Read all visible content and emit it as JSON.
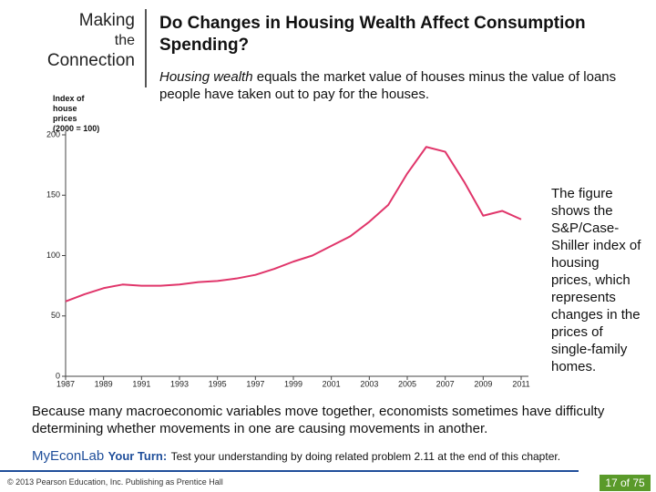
{
  "header": {
    "label_lines": [
      "Making",
      "the",
      "Connection"
    ],
    "title": "Do Changes in Housing Wealth Affect Consumption Spending?",
    "subtitle_emphasis": "Housing wealth",
    "subtitle_rest": " equals the market value of houses minus the value of loans people have taken out to pay for the houses."
  },
  "chart_data": {
    "type": "line",
    "y_label": "Index of house prices (2000 = 100)",
    "x": [
      1987,
      1988,
      1989,
      1990,
      1991,
      1992,
      1993,
      1994,
      1995,
      1996,
      1997,
      1998,
      1999,
      2000,
      2001,
      2002,
      2003,
      2004,
      2005,
      2006,
      2007,
      2008,
      2009,
      2010,
      2011
    ],
    "series": [
      {
        "name": "S&P/Case-Shiller index",
        "color": "#e0356a",
        "values": [
          62,
          68,
          73,
          76,
          75,
          75,
          76,
          78,
          79,
          81,
          84,
          89,
          95,
          100,
          108,
          116,
          128,
          142,
          168,
          190,
          186,
          161,
          133,
          137,
          130
        ]
      }
    ],
    "xlim": [
      1987,
      2011
    ],
    "xticks": [
      1987,
      1989,
      1991,
      1993,
      1995,
      1997,
      1999,
      2001,
      2003,
      2005,
      2007,
      2009,
      2011
    ],
    "ylim": [
      0,
      200
    ],
    "yticks": [
      0,
      50,
      100,
      150,
      200
    ],
    "grid": false
  },
  "side_note": "The figure shows the S&P/Case-Shiller index of housing prices, which represents changes in the prices of single-family homes.",
  "body": "Because many macroeconomic variables move together, economists sometimes have difficulty determining whether movements in one are causing movements in another.",
  "your_turn": {
    "brand": "MyEconLab",
    "label": "Your Turn:",
    "text": "Test your understanding by doing related problem 2.11 at the end of this chapter."
  },
  "footer": {
    "copyright": "© 2013 Pearson Education, Inc. Publishing as Prentice Hall",
    "page": "17 of 75"
  }
}
